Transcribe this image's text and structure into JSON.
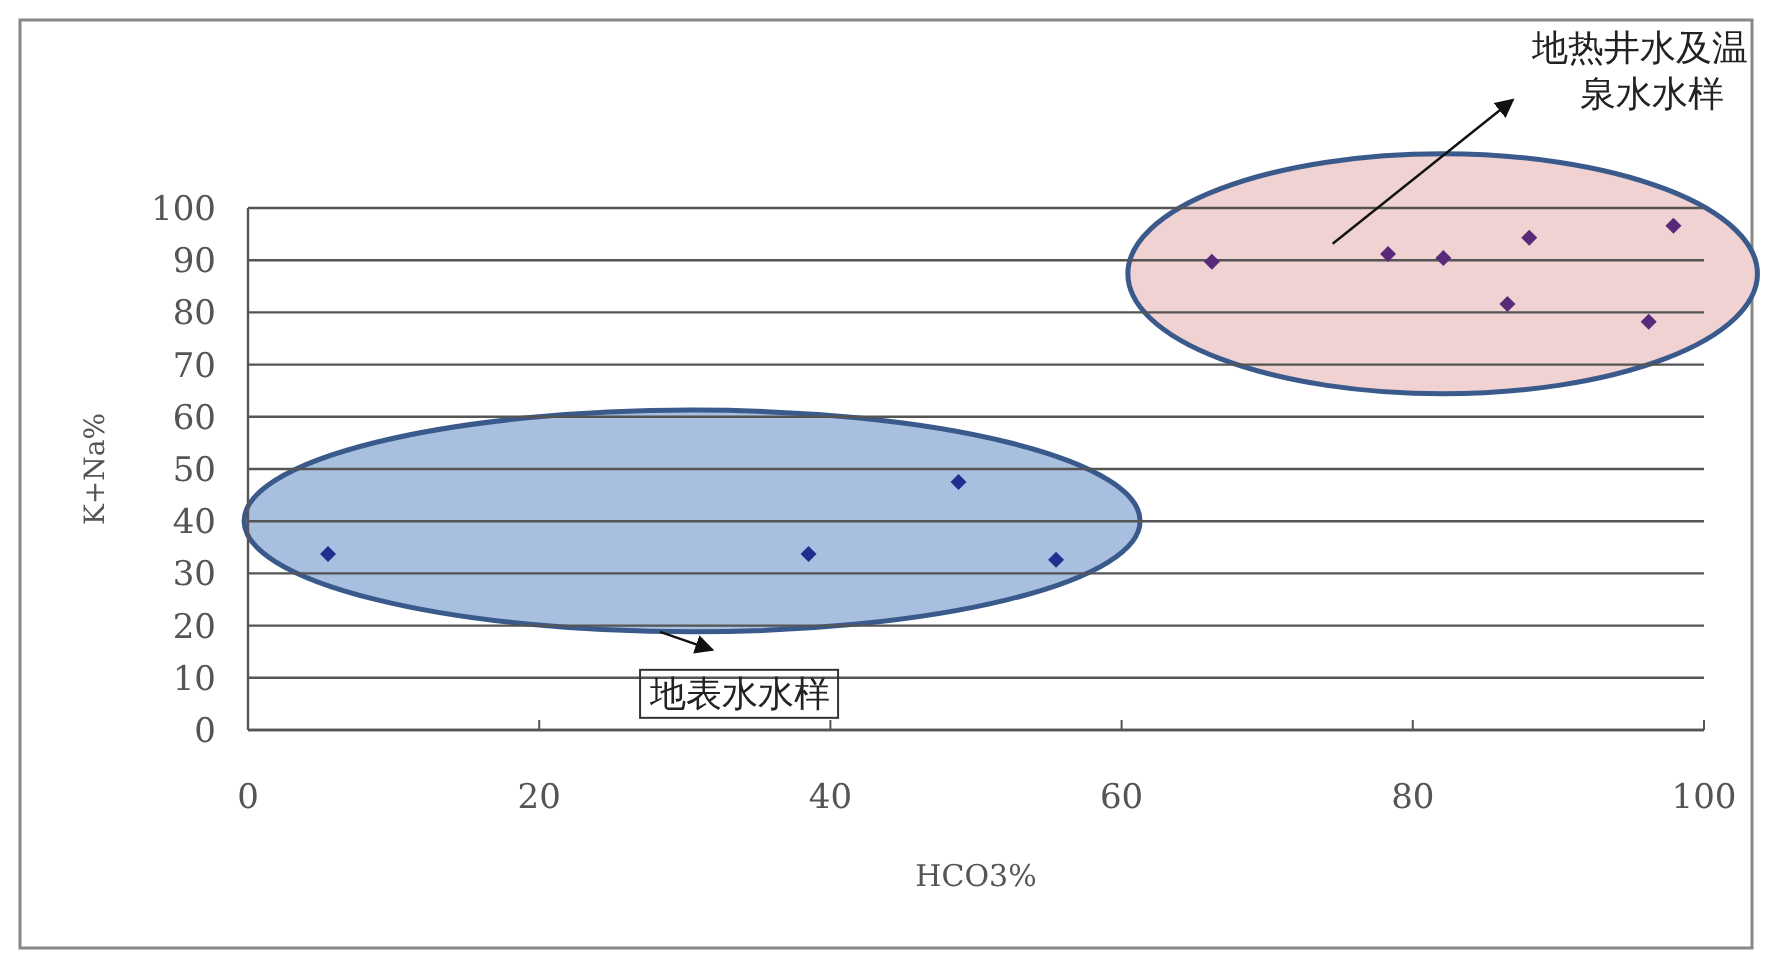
{
  "chart_data": {
    "type": "scatter",
    "xlabel": "HCO3%",
    "ylabel": "K+Na%",
    "xlim": [
      0,
      100
    ],
    "xticks": [
      0,
      20,
      40,
      60,
      80,
      100
    ],
    "ylim": [
      0,
      100
    ],
    "yticks": [
      0,
      10,
      20,
      30,
      40,
      50,
      60,
      70,
      80,
      90,
      100
    ],
    "grid": "y",
    "marker": "diamond",
    "series": [
      {
        "color": "#1f2f8f",
        "x": [
          5.5,
          38.5,
          48.8,
          55.5
        ],
        "values": [
          33.7,
          33.7,
          47.5,
          32.6
        ]
      },
      {
        "color": "#5a2a7a",
        "x": [
          66.2,
          78.3,
          82.1,
          88.0,
          86.5,
          97.9,
          96.2
        ],
        "values": [
          89.7,
          91.2,
          90.4,
          94.3,
          81.6,
          96.6,
          78.2
        ]
      }
    ],
    "annotations": [
      "地表水水样",
      "地热井水及温泉水水样"
    ]
  }
}
